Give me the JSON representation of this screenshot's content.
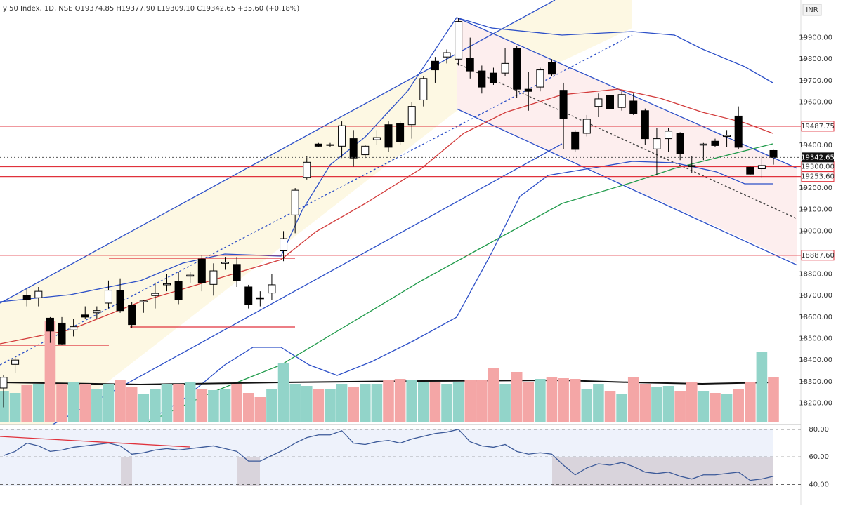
{
  "chart_data": {
    "type": "candlestick",
    "title": "y 50 Index, 1D, NSE  O19374.85 H19377.90 L19309.10 C19342.65 +35.60 (+0.18%)",
    "currency": "INR",
    "open": [
      18270,
      18380,
      18700,
      18690,
      18595,
      18572,
      18540,
      18610,
      18620,
      18665,
      18725,
      18655,
      18670,
      18700,
      18750,
      18765,
      18790,
      18870,
      18752,
      18850,
      18845,
      18740,
      18690,
      18712,
      18908,
      19075,
      19250,
      19405,
      19400,
      19395,
      19430,
      19355,
      19425,
      19495,
      19500,
      19495,
      19610,
      19790,
      19810,
      19800,
      19805,
      19745,
      19735,
      19735,
      19850,
      19660,
      19670,
      19785,
      19655,
      19460,
      19455,
      19580,
      19630,
      19575,
      19605,
      19560,
      19382,
      19430,
      19455,
      19305,
      19400,
      19418,
      19440,
      19535,
      19297,
      19290,
      19374.85
    ],
    "high": [
      18330,
      18420,
      18730,
      18740,
      18600,
      18600,
      18590,
      18650,
      18650,
      18770,
      18780,
      18670,
      18680,
      18760,
      18800,
      18810,
      18810,
      18890,
      18850,
      18880,
      18880,
      18750,
      18720,
      18800,
      19000,
      19200,
      19350,
      19410,
      19410,
      19510,
      19470,
      19400,
      19470,
      19510,
      19510,
      19600,
      19720,
      19810,
      19845,
      19990,
      19900,
      19770,
      19760,
      19850,
      19860,
      19740,
      19760,
      19800,
      19690,
      19470,
      19540,
      19640,
      19650,
      19650,
      19640,
      19570,
      19480,
      19480,
      19460,
      19350,
      19410,
      19430,
      19470,
      19580,
      19300,
      19350,
      19377.9
    ],
    "low": [
      18180,
      18340,
      18650,
      18650,
      18480,
      18470,
      18510,
      18590,
      18590,
      18640,
      18620,
      18550,
      18620,
      18640,
      18720,
      18660,
      18760,
      18720,
      18700,
      18820,
      18740,
      18640,
      18650,
      18680,
      18860,
      18990,
      19240,
      19390,
      19390,
      19340,
      19300,
      19340,
      19400,
      19370,
      19400,
      19430,
      19580,
      19690,
      19780,
      19770,
      19710,
      19640,
      19680,
      19720,
      19620,
      19560,
      19650,
      19720,
      19380,
      19370,
      19440,
      19530,
      19550,
      19560,
      19540,
      19400,
      19260,
      19370,
      19330,
      19270,
      19330,
      19390,
      19390,
      19380,
      19260,
      19250,
      19309.1
    ],
    "close": [
      18320,
      18400,
      18680,
      18720,
      18535,
      18475,
      18555,
      18600,
      18630,
      18725,
      18630,
      18565,
      18675,
      18710,
      18755,
      18680,
      18795,
      18760,
      18815,
      18855,
      18770,
      18660,
      18685,
      18750,
      18965,
      19190,
      19320,
      19395,
      19402,
      19490,
      19340,
      19395,
      19435,
      19390,
      19415,
      19580,
      19710,
      19750,
      19830,
      19975,
      19745,
      19670,
      19690,
      19780,
      19660,
      19650,
      19750,
      19730,
      19525,
      19380,
      19520,
      19615,
      19570,
      19635,
      19545,
      19430,
      19430,
      19465,
      19360,
      19300,
      19405,
      19398,
      19445,
      19390,
      19265,
      19305,
      19342.65
    ],
    "ylim": [
      18110,
      20075
    ],
    "yticks": [
      {
        "value": 18200,
        "label": "18200.00"
      },
      {
        "value": 18300,
        "label": "18300.00"
      },
      {
        "value": 18400,
        "label": "18400.00"
      },
      {
        "value": 18500,
        "label": "18500.00"
      },
      {
        "value": 18600,
        "label": "18600.00"
      },
      {
        "value": 18700,
        "label": "18700.00"
      },
      {
        "value": 18800,
        "label": "18800.00"
      },
      {
        "value": 19000,
        "label": "19000.00"
      },
      {
        "value": 19100,
        "label": "19100.00"
      },
      {
        "value": 19200,
        "label": "19200.00"
      },
      {
        "value": 19400,
        "label": "19400.00"
      },
      {
        "value": 19600,
        "label": "19600.00"
      },
      {
        "value": 19700,
        "label": "19700.00"
      },
      {
        "value": 19800,
        "label": "19800.00"
      },
      {
        "value": 19900,
        "label": "19900.00"
      }
    ],
    "price_levels": [
      19487.75,
      {
        "value": 19300,
        "label": "19300.00"
      },
      {
        "value": 19253.6,
        "label": "19253.60"
      },
      {
        "value": 18887.6,
        "label": "18887.60"
      }
    ],
    "level_color": "#e0323c",
    "up_color": "#ffffff",
    "down_color": "#000000",
    "volume": {
      "values": [
        45,
        42,
        54,
        55,
        145,
        55,
        57,
        55,
        47,
        55,
        60,
        50,
        40,
        47,
        55,
        55,
        57,
        48,
        46,
        47,
        55,
        42,
        36,
        47,
        85,
        55,
        52,
        48,
        48,
        55,
        50,
        55,
        55,
        60,
        62,
        60,
        57,
        58,
        55,
        58,
        60,
        60,
        78,
        55,
        72,
        58,
        62,
        65,
        63,
        62,
        48,
        55,
        45,
        40,
        65,
        55,
        50,
        52,
        45,
        57,
        45,
        42,
        40,
        48,
        58,
        100,
        65
      ],
      "ylim": [
        0,
        150
      ],
      "up_color": "#92d4c9",
      "down_color": "#f4a6a6"
    },
    "rsi": {
      "values": [
        61,
        64,
        70,
        68,
        64,
        65,
        67,
        68,
        69,
        70,
        68,
        62,
        63,
        65,
        66,
        65,
        66,
        67,
        68,
        66,
        64,
        57,
        57,
        61,
        65,
        70,
        74,
        76,
        76,
        79,
        70,
        69,
        71,
        72,
        70,
        73,
        75,
        77,
        78,
        80,
        71,
        68,
        67,
        69,
        64,
        62,
        63,
        62,
        54,
        47,
        52,
        55,
        54,
        56,
        53,
        49,
        48,
        49,
        46,
        44,
        47,
        47,
        48,
        49,
        43,
        44,
        46
      ],
      "ylim": [
        25,
        83.5
      ],
      "yticks": [
        {
          "value": 80,
          "label": "80.00"
        },
        {
          "value": 60,
          "label": "60.00"
        },
        {
          "value": 40,
          "label": "40.00"
        }
      ],
      "color": "#3c5a99"
    }
  }
}
